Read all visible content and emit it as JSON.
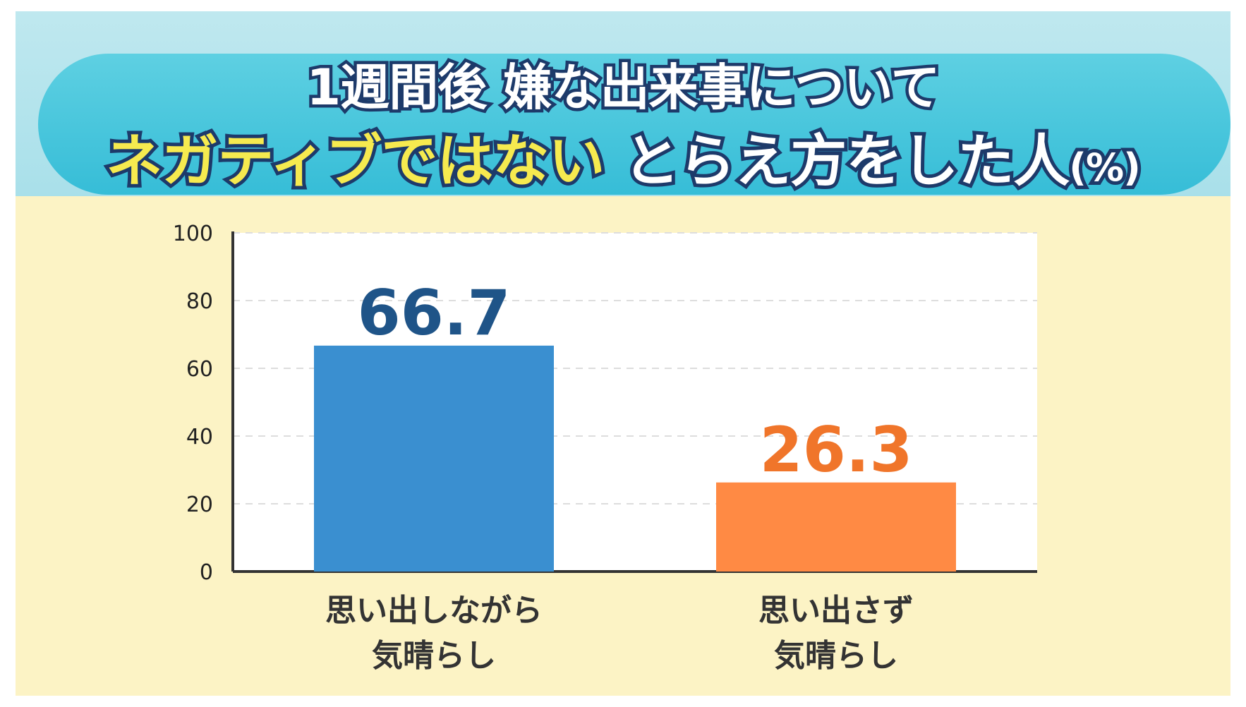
{
  "title": {
    "line1": "1週間後 嫌な出来事について",
    "line2_highlight": "ネガティブではない",
    "line2_rest": "とらえ方をした人",
    "unit": "(%)"
  },
  "colors": {
    "banner_outer": "#a9e0ea",
    "banner_pill": "#36bdd7",
    "title_outline": "#1d3a6a",
    "highlight_text": "#f6ea4f",
    "panel_background": "#fcf3c5",
    "plot_background": "#ffffff",
    "gridline": "#dddddd",
    "axis": "#333333"
  },
  "chart_data": {
    "type": "bar",
    "ylim": [
      0,
      100
    ],
    "yticks": [
      0,
      20,
      40,
      60,
      80,
      100
    ],
    "grid": true,
    "categories": [
      {
        "line1": "思い出しながら",
        "line2": "気晴らし"
      },
      {
        "line1": "思い出さず",
        "line2": "気晴らし"
      }
    ],
    "values": [
      66.7,
      26.3
    ],
    "value_labels": [
      "66.7",
      "26.3"
    ],
    "bar_colors": [
      "#3a8fd0",
      "#ff8a44"
    ],
    "label_colors": [
      "#1f5488",
      "#f0752a"
    ]
  }
}
